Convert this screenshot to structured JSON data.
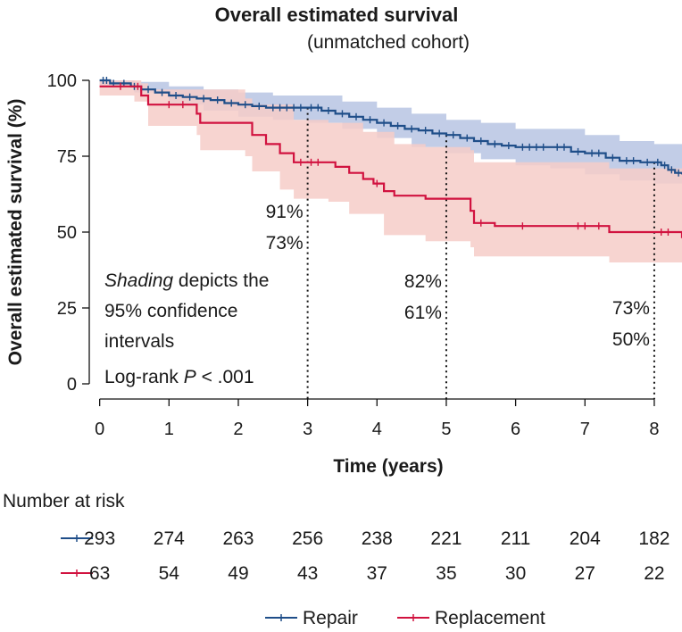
{
  "colors": {
    "repair": "#1f4e89",
    "replacement": "#d1123f",
    "repair_band": "#b7c4e3",
    "replacement_band": "#f6cdc8",
    "text": "#1a1a1a"
  },
  "chart_data": {
    "type": "line",
    "title": "Overall estimated survival",
    "subtitle": "(unmatched cohort)",
    "xlabel": "Time (years)",
    "ylabel": "Overall estimated survival (%)",
    "xlim": [
      -0.15,
      8.4
    ],
    "ylim": [
      -5,
      105
    ],
    "xticks": [
      0,
      1,
      2,
      3,
      4,
      5,
      6,
      7,
      8
    ],
    "yticks": [
      0,
      25,
      50,
      75,
      100
    ],
    "series": [
      {
        "name": "Repair",
        "color": "#1f4e89",
        "band_color": "#b7c4e3",
        "points": [
          [
            0,
            100
          ],
          [
            0.15,
            99
          ],
          [
            0.3,
            99
          ],
          [
            0.45,
            98
          ],
          [
            0.6,
            97
          ],
          [
            0.8,
            96
          ],
          [
            1.0,
            95
          ],
          [
            1.2,
            94.5
          ],
          [
            1.4,
            94
          ],
          [
            1.6,
            93.5
          ],
          [
            1.8,
            92.5
          ],
          [
            2.0,
            92
          ],
          [
            2.2,
            91.5
          ],
          [
            2.4,
            91
          ],
          [
            3.0,
            91
          ],
          [
            3.2,
            90
          ],
          [
            3.4,
            89
          ],
          [
            3.6,
            88
          ],
          [
            3.8,
            87
          ],
          [
            4.0,
            86
          ],
          [
            4.2,
            85
          ],
          [
            4.4,
            84
          ],
          [
            4.6,
            83.5
          ],
          [
            4.8,
            82.5
          ],
          [
            5.0,
            82
          ],
          [
            5.2,
            81
          ],
          [
            5.4,
            80
          ],
          [
            5.6,
            79
          ],
          [
            5.8,
            78.5
          ],
          [
            6.0,
            78
          ],
          [
            6.5,
            78
          ],
          [
            6.8,
            76.5
          ],
          [
            7.0,
            76
          ],
          [
            7.3,
            74.5
          ],
          [
            7.5,
            73.5
          ],
          [
            7.8,
            73
          ],
          [
            8.0,
            73
          ],
          [
            8.1,
            72
          ],
          [
            8.2,
            70.5
          ],
          [
            8.3,
            69.5
          ],
          [
            8.4,
            69
          ]
        ],
        "ci_upper": [
          [
            0,
            100
          ],
          [
            0.5,
            99.5
          ],
          [
            1.0,
            98
          ],
          [
            1.5,
            97
          ],
          [
            2.0,
            96
          ],
          [
            2.5,
            95
          ],
          [
            3.0,
            95
          ],
          [
            3.5,
            93
          ],
          [
            4.0,
            91
          ],
          [
            4.5,
            89
          ],
          [
            5.0,
            87
          ],
          [
            5.5,
            86
          ],
          [
            6.0,
            84
          ],
          [
            6.5,
            84
          ],
          [
            7.0,
            82
          ],
          [
            7.5,
            80
          ],
          [
            8.0,
            79
          ],
          [
            8.4,
            75
          ]
        ],
        "ci_lower": [
          [
            0,
            98
          ],
          [
            0.5,
            96
          ],
          [
            1.0,
            92
          ],
          [
            1.5,
            90
          ],
          [
            2.0,
            88
          ],
          [
            2.5,
            87
          ],
          [
            3.0,
            86
          ],
          [
            3.5,
            84
          ],
          [
            4.0,
            81
          ],
          [
            4.5,
            78
          ],
          [
            5.0,
            76
          ],
          [
            5.5,
            74
          ],
          [
            6.0,
            72
          ],
          [
            6.5,
            71
          ],
          [
            7.0,
            69
          ],
          [
            7.5,
            67
          ],
          [
            8.0,
            66
          ],
          [
            8.4,
            63
          ]
        ],
        "censor_times": [
          0.05,
          0.1,
          0.2,
          0.35,
          0.5,
          0.7,
          0.9,
          1.1,
          1.3,
          1.5,
          1.7,
          1.9,
          2.1,
          2.3,
          2.5,
          2.6,
          2.7,
          2.8,
          2.9,
          3.05,
          3.15,
          3.3,
          3.5,
          3.7,
          3.9,
          4.1,
          4.3,
          4.5,
          4.7,
          4.9,
          5.1,
          5.3,
          5.5,
          5.7,
          5.9,
          6.1,
          6.2,
          6.3,
          6.4,
          6.6,
          6.7,
          6.9,
          7.1,
          7.2,
          7.4,
          7.6,
          7.7,
          7.9,
          8.05,
          8.15,
          8.25,
          8.35
        ]
      },
      {
        "name": "Replacement",
        "color": "#d1123f",
        "band_color": "#f6cdc8",
        "points": [
          [
            0,
            98
          ],
          [
            0.5,
            98
          ],
          [
            0.6,
            95
          ],
          [
            0.7,
            92
          ],
          [
            1.4,
            92
          ],
          [
            1.4,
            89
          ],
          [
            1.45,
            86
          ],
          [
            2.1,
            86
          ],
          [
            2.2,
            82
          ],
          [
            2.4,
            79
          ],
          [
            2.6,
            76
          ],
          [
            2.8,
            73
          ],
          [
            3.3,
            73
          ],
          [
            3.4,
            71.5
          ],
          [
            3.6,
            69.5
          ],
          [
            3.8,
            67.5
          ],
          [
            3.95,
            66
          ],
          [
            4.1,
            63.5
          ],
          [
            4.25,
            62
          ],
          [
            4.6,
            62
          ],
          [
            4.7,
            61
          ],
          [
            5.3,
            61
          ],
          [
            5.35,
            57
          ],
          [
            5.4,
            53
          ],
          [
            5.7,
            52
          ],
          [
            7.0,
            52
          ],
          [
            7.3,
            52
          ],
          [
            7.35,
            50
          ],
          [
            8.3,
            50
          ],
          [
            8.4,
            48
          ]
        ],
        "ci_upper": [
          [
            0,
            100
          ],
          [
            0.6,
            99
          ],
          [
            0.7,
            97
          ],
          [
            1.4,
            97
          ],
          [
            2.1,
            94
          ],
          [
            2.2,
            92
          ],
          [
            2.8,
            87
          ],
          [
            3.3,
            86
          ],
          [
            3.8,
            83
          ],
          [
            4.25,
            79
          ],
          [
            4.7,
            78
          ],
          [
            5.35,
            77
          ],
          [
            5.4,
            73
          ],
          [
            7.3,
            73
          ],
          [
            7.35,
            71
          ],
          [
            8.4,
            68
          ]
        ],
        "ci_lower": [
          [
            0,
            95
          ],
          [
            0.5,
            93
          ],
          [
            0.7,
            85
          ],
          [
            1.4,
            82
          ],
          [
            1.45,
            77
          ],
          [
            2.1,
            75
          ],
          [
            2.2,
            70
          ],
          [
            2.6,
            64
          ],
          [
            2.8,
            61
          ],
          [
            3.3,
            60
          ],
          [
            3.6,
            56
          ],
          [
            4.1,
            49
          ],
          [
            4.7,
            47
          ],
          [
            5.35,
            45
          ],
          [
            5.4,
            42
          ],
          [
            6.0,
            42
          ],
          [
            7.35,
            40
          ],
          [
            8.4,
            37
          ]
        ],
        "censor_times": [
          0.3,
          0.55,
          1.0,
          1.2,
          2.9,
          3.05,
          3.15,
          4.0,
          5.5,
          6.1,
          6.9,
          7.0,
          7.2,
          8.1,
          8.2
        ]
      }
    ],
    "reference_times": [
      3,
      5,
      8
    ],
    "annotations": [
      {
        "time": 3,
        "repair": "91%",
        "replacement": "73%"
      },
      {
        "time": 5,
        "repair": "82%",
        "replacement": "61%"
      },
      {
        "time": 8,
        "repair": "73%",
        "replacement": "50%"
      }
    ],
    "note_line1_em": "Shading",
    "note_line1_rest": " depicts the",
    "note_line2": "95% confidence",
    "note_line3": "intervals",
    "logrank_prefix": "Log-rank ",
    "logrank_p": "P",
    "logrank_suffix": " < .001",
    "risk_title": "Number at risk",
    "risk_repair": [
      "293",
      "274",
      "263",
      "256",
      "238",
      "221",
      "211",
      "204",
      "182"
    ],
    "risk_replacement": [
      "63",
      "54",
      "49",
      "43",
      "37",
      "35",
      "30",
      "27",
      "22"
    ],
    "legend": [
      "Repair",
      "Replacement"
    ]
  }
}
